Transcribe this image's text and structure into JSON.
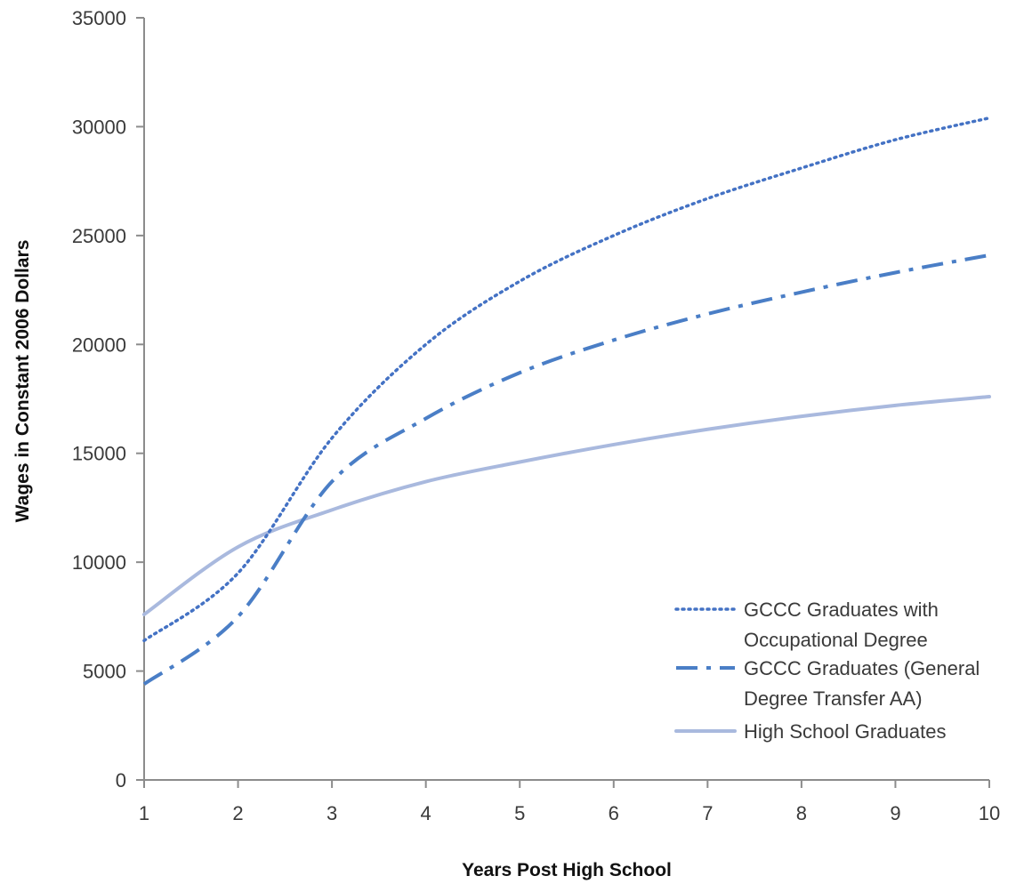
{
  "chart_data": {
    "type": "line",
    "title": "",
    "xlabel": "Years Post High School",
    "ylabel": "Wages in Constant 2006  Dollars",
    "x": [
      1,
      2,
      3,
      4,
      5,
      6,
      7,
      8,
      9,
      10
    ],
    "xlim": [
      1,
      10
    ],
    "ylim": [
      0,
      35000
    ],
    "yticks": [
      0,
      5000,
      10000,
      15000,
      20000,
      25000,
      30000,
      35000
    ],
    "xticks": [
      1,
      2,
      3,
      4,
      5,
      6,
      7,
      8,
      9,
      10
    ],
    "grid": false,
    "legend_position": "bottom-right",
    "series": [
      {
        "name": "GCCC Graduates with Occupational Degree",
        "legend_lines": [
          "GCCC Graduates with",
          "Occupational Degree"
        ],
        "style": "dotted",
        "color": "#4472c4",
        "values": [
          6400,
          9500,
          15700,
          20000,
          22900,
          25000,
          26700,
          28100,
          29400,
          30400
        ]
      },
      {
        "name": "GCCC Graduates (General Degree Transfer AA)",
        "legend_lines": [
          "GCCC Graduates (General",
          "Degree Transfer AA)"
        ],
        "style": "dash-dot",
        "color": "#4a7ec6",
        "values": [
          4400,
          7500,
          13700,
          16600,
          18700,
          20200,
          21400,
          22400,
          23300,
          24100
        ]
      },
      {
        "name": "High School Graduates",
        "legend_lines": [
          "High School Graduates"
        ],
        "style": "solid",
        "color": "#a9b9de",
        "values": [
          7600,
          10700,
          12400,
          13700,
          14600,
          15400,
          16100,
          16700,
          17200,
          17600
        ]
      }
    ]
  }
}
